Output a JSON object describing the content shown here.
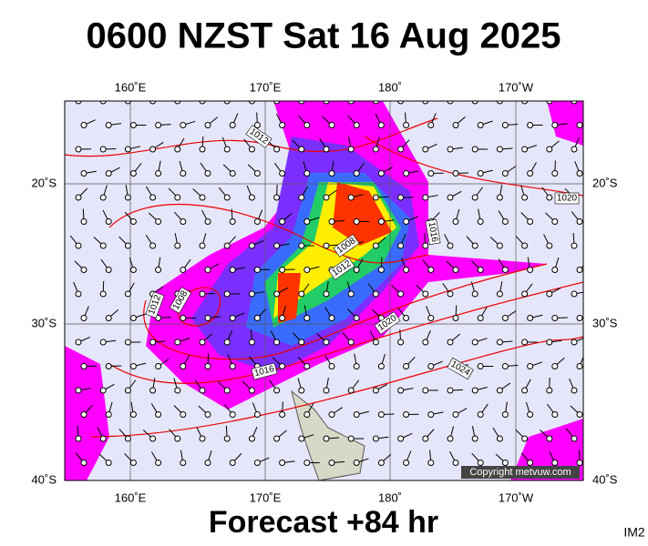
{
  "header": {
    "title": "0600 NZST Sat 16 Aug 2025"
  },
  "footer": {
    "forecast": "Forecast +84 hr",
    "code": "IM2"
  },
  "map": {
    "top_labels": [
      "160˚E",
      "170˚E",
      "180˚",
      "170˚W"
    ],
    "bottom_labels": [
      "160˚E",
      "170˚E",
      "180˚",
      "170˚W"
    ],
    "left_labels": [
      "20˚S",
      "30˚S",
      "40˚S"
    ],
    "right_labels": [
      "20˚S",
      "30˚S",
      "40˚S"
    ],
    "contour_labels": [
      "1012",
      "1008",
      "1012",
      "1012",
      "1008",
      "1016",
      "1020",
      "1024",
      "1020",
      "1016"
    ],
    "copyright": "Copyright metvuw.com"
  }
}
